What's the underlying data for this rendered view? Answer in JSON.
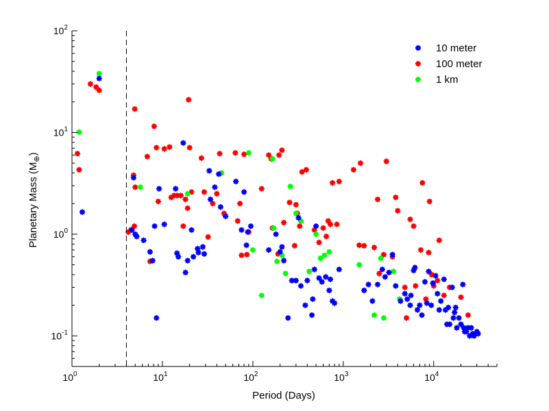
{
  "chart_data": {
    "type": "scatter",
    "xscale": "log",
    "yscale": "log",
    "xlim": [
      1,
      50000
    ],
    "ylim": [
      0.05,
      100
    ],
    "xlabel": "Period (Days)",
    "ylabel_main": "Planetary Mass (M",
    "ylabel_sub": "⊕",
    "ylabel_end": ")",
    "xticks": [
      {
        "base": "10",
        "exp": "0",
        "value": 1
      },
      {
        "base": "10",
        "exp": "1",
        "value": 10
      },
      {
        "base": "10",
        "exp": "2",
        "value": 100
      },
      {
        "base": "10",
        "exp": "3",
        "value": 1000
      },
      {
        "base": "10",
        "exp": "4",
        "value": 10000
      }
    ],
    "yticks": [
      {
        "base": "10",
        "exp": "-1",
        "value": 0.1
      },
      {
        "base": "10",
        "exp": "0",
        "value": 1
      },
      {
        "base": "10",
        "exp": "1",
        "value": 10
      },
      {
        "base": "10",
        "exp": "2",
        "value": 100
      }
    ],
    "reference_line": {
      "x": 4,
      "style": "dashed"
    },
    "legend_position": "top-right",
    "series": [
      {
        "name": "10 meter",
        "color": "#0000ff",
        "points": [
          [
            1.3,
            1.65
          ],
          [
            2.0,
            34
          ],
          [
            4.6,
            1.1
          ],
          [
            4.8,
            3.6
          ],
          [
            5.0,
            1.0
          ],
          [
            5.2,
            0.95
          ],
          [
            6.2,
            0.87
          ],
          [
            7.3,
            0.67
          ],
          [
            7.8,
            0.55
          ],
          [
            8.2,
            1.2
          ],
          [
            8.6,
            0.15
          ],
          [
            9.2,
            2.8
          ],
          [
            10.5,
            1.25
          ],
          [
            14,
            2.8
          ],
          [
            14.5,
            0.65
          ],
          [
            15,
            0.6
          ],
          [
            17,
            7.9
          ],
          [
            18,
            0.42
          ],
          [
            19,
            0.55
          ],
          [
            21,
            1.1
          ],
          [
            22,
            0.6
          ],
          [
            24.5,
            0.72
          ],
          [
            25,
            0.66
          ],
          [
            28,
            0.75
          ],
          [
            29,
            0.64
          ],
          [
            33,
            4.2
          ],
          [
            34,
            2.2
          ],
          [
            38,
            2.9
          ],
          [
            42,
            3.9
          ],
          [
            44,
            1.85
          ],
          [
            50,
            1.5
          ],
          [
            65,
            3.3
          ],
          [
            75,
            1.1
          ],
          [
            80,
            2.6
          ],
          [
            85,
            0.78
          ],
          [
            88,
            1.05
          ],
          [
            95,
            1.2
          ],
          [
            150,
            0.7
          ],
          [
            180,
            1.0
          ],
          [
            200,
            0.67
          ],
          [
            210,
            0.75
          ],
          [
            220,
            0.55
          ],
          [
            245,
            0.15
          ],
          [
            270,
            0.35
          ],
          [
            300,
            0.35
          ],
          [
            320,
            1.45
          ],
          [
            340,
            0.31
          ],
          [
            380,
            0.2
          ],
          [
            400,
            0.35
          ],
          [
            450,
            0.16
          ],
          [
            460,
            0.23
          ],
          [
            480,
            0.45
          ],
          [
            500,
            1.2
          ],
          [
            540,
            0.37
          ],
          [
            580,
            0.34
          ],
          [
            640,
            0.38
          ],
          [
            700,
            0.28
          ],
          [
            720,
            0.36
          ],
          [
            760,
            0.22
          ],
          [
            800,
            0.21
          ],
          [
            900,
            0.45
          ],
          [
            1700,
            0.28
          ],
          [
            1900,
            0.32
          ],
          [
            2100,
            0.22
          ],
          [
            2400,
            0.32
          ],
          [
            2700,
            0.45
          ],
          [
            2900,
            0.38
          ],
          [
            3200,
            0.42
          ],
          [
            3500,
            0.63
          ],
          [
            3800,
            0.31
          ],
          [
            4300,
            0.22
          ],
          [
            4800,
            0.26
          ],
          [
            5100,
            0.23
          ],
          [
            5500,
            0.2
          ],
          [
            5600,
            0.25
          ],
          [
            6000,
            0.44
          ],
          [
            6200,
            0.47
          ],
          [
            6600,
            0.18
          ],
          [
            7000,
            0.2
          ],
          [
            7400,
            0.16
          ],
          [
            8000,
            0.34
          ],
          [
            8400,
            0.21
          ],
          [
            8800,
            0.43
          ],
          [
            9400,
            0.2
          ],
          [
            9800,
            0.33
          ],
          [
            10500,
            0.39
          ],
          [
            11000,
            0.26
          ],
          [
            11500,
            0.18
          ],
          [
            12000,
            0.22
          ],
          [
            13000,
            0.36
          ],
          [
            13500,
            0.18
          ],
          [
            14000,
            0.13
          ],
          [
            14500,
            0.19
          ],
          [
            15000,
            0.13
          ],
          [
            16000,
            0.3
          ],
          [
            16500,
            0.15
          ],
          [
            17000,
            0.17
          ],
          [
            17500,
            0.19
          ],
          [
            18000,
            0.12
          ],
          [
            19000,
            0.15
          ],
          [
            20000,
            0.13
          ],
          [
            21000,
            0.32
          ],
          [
            21500,
            0.12
          ],
          [
            22000,
            0.11
          ],
          [
            23000,
            0.11
          ],
          [
            24000,
            0.12
          ],
          [
            25000,
            0.1
          ],
          [
            26000,
            0.12
          ],
          [
            27000,
            0.105
          ],
          [
            28000,
            0.1
          ],
          [
            30000,
            0.11
          ],
          [
            31000,
            0.105
          ]
        ]
      },
      {
        "name": "100 meter",
        "color": "#ff0000",
        "points": [
          [
            1.15,
            6.2
          ],
          [
            1.2,
            4.3
          ],
          [
            1.6,
            30
          ],
          [
            1.85,
            28
          ],
          [
            2.0,
            26
          ],
          [
            4.2,
            1.05
          ],
          [
            4.5,
            1.1
          ],
          [
            4.8,
            3.8
          ],
          [
            4.9,
            1.2
          ],
          [
            4.95,
            17
          ],
          [
            5.0,
            2.9
          ],
          [
            6.8,
            5.8
          ],
          [
            7.3,
            0.54
          ],
          [
            8.1,
            11.5
          ],
          [
            8.6,
            7.1
          ],
          [
            9.0,
            2.1
          ],
          [
            10.5,
            6.9
          ],
          [
            12,
            7.2
          ],
          [
            12.5,
            2.3
          ],
          [
            13.5,
            2.4
          ],
          [
            14.5,
            2.4
          ],
          [
            16,
            2.4
          ],
          [
            17,
            1.2
          ],
          [
            18,
            2.2
          ],
          [
            19,
            1.8
          ],
          [
            19.5,
            21
          ],
          [
            20,
            7.1
          ],
          [
            21,
            2.6
          ],
          [
            27,
            5.6
          ],
          [
            29,
            2.6
          ],
          [
            32,
            0.94
          ],
          [
            36,
            2.0
          ],
          [
            40,
            2.5
          ],
          [
            43,
            6.2
          ],
          [
            45,
            4.0
          ],
          [
            48,
            1.6
          ],
          [
            64,
            6.3
          ],
          [
            68,
            1.35
          ],
          [
            72,
            2.0
          ],
          [
            75,
            0.62
          ],
          [
            80,
            6.1
          ],
          [
            86,
            0.63
          ],
          [
            90,
            1.05
          ],
          [
            125,
            2.8
          ],
          [
            150,
            6.0
          ],
          [
            160,
            5.5
          ],
          [
            165,
            1.15
          ],
          [
            190,
            0.64
          ],
          [
            195,
            6.0
          ],
          [
            210,
            6.7
          ],
          [
            220,
            1.3
          ],
          [
            255,
            2.05
          ],
          [
            290,
            0.77
          ],
          [
            300,
            1.95
          ],
          [
            310,
            1.6
          ],
          [
            330,
            1.2
          ],
          [
            350,
            4.1
          ],
          [
            390,
            4.3
          ],
          [
            480,
            1.1
          ],
          [
            540,
            0.83
          ],
          [
            600,
            1.15
          ],
          [
            650,
            0.95
          ],
          [
            680,
            1.35
          ],
          [
            720,
            1.25
          ],
          [
            760,
            3.2
          ],
          [
            850,
            1.25
          ],
          [
            900,
            3.3
          ],
          [
            1300,
            4.3
          ],
          [
            1500,
            0.78
          ],
          [
            1550,
            5.0
          ],
          [
            1700,
            0.77
          ],
          [
            2200,
            0.74
          ],
          [
            2400,
            2.2
          ],
          [
            2500,
            0.41
          ],
          [
            2800,
            0.63
          ],
          [
            3000,
            5.2
          ],
          [
            3500,
            0.6
          ],
          [
            3800,
            2.3
          ],
          [
            4000,
            1.7
          ],
          [
            4800,
            0.3
          ],
          [
            5000,
            0.15
          ],
          [
            5500,
            1.4
          ],
          [
            6000,
            1.2
          ],
          [
            6300,
            0.31
          ],
          [
            7200,
            0.7
          ],
          [
            7500,
            3.2
          ],
          [
            8200,
            0.23
          ],
          [
            8800,
            0.66
          ],
          [
            9000,
            2.1
          ],
          [
            9500,
            0.4
          ],
          [
            10000,
            0.31
          ],
          [
            11000,
            0.35
          ],
          [
            11500,
            0.87
          ],
          [
            13000,
            0.25
          ],
          [
            15000,
            0.3
          ],
          [
            20000,
            0.24
          ],
          [
            24000,
            0.16
          ]
        ]
      },
      {
        "name": "1 km",
        "color": "#00ff00",
        "points": [
          [
            1.2,
            10.1
          ],
          [
            2.0,
            38
          ],
          [
            5.7,
            2.9
          ],
          [
            19,
            2.5
          ],
          [
            45,
            4.0
          ],
          [
            90,
            6.3
          ],
          [
            100,
            0.7
          ],
          [
            125,
            0.25
          ],
          [
            165,
            5.5
          ],
          [
            170,
            1.15
          ],
          [
            185,
            0.54
          ],
          [
            210,
            0.62
          ],
          [
            230,
            0.41
          ],
          [
            260,
            2.95
          ],
          [
            300,
            1.6
          ],
          [
            340,
            1.35
          ],
          [
            420,
            0.43
          ],
          [
            500,
            1.0
          ],
          [
            560,
            0.58
          ],
          [
            620,
            0.62
          ],
          [
            700,
            0.67
          ],
          [
            1500,
            0.5
          ],
          [
            2200,
            0.16
          ],
          [
            2600,
            0.58
          ],
          [
            2800,
            0.15
          ],
          [
            3600,
            0.43
          ],
          [
            4200,
            0.23
          ]
        ]
      }
    ]
  }
}
